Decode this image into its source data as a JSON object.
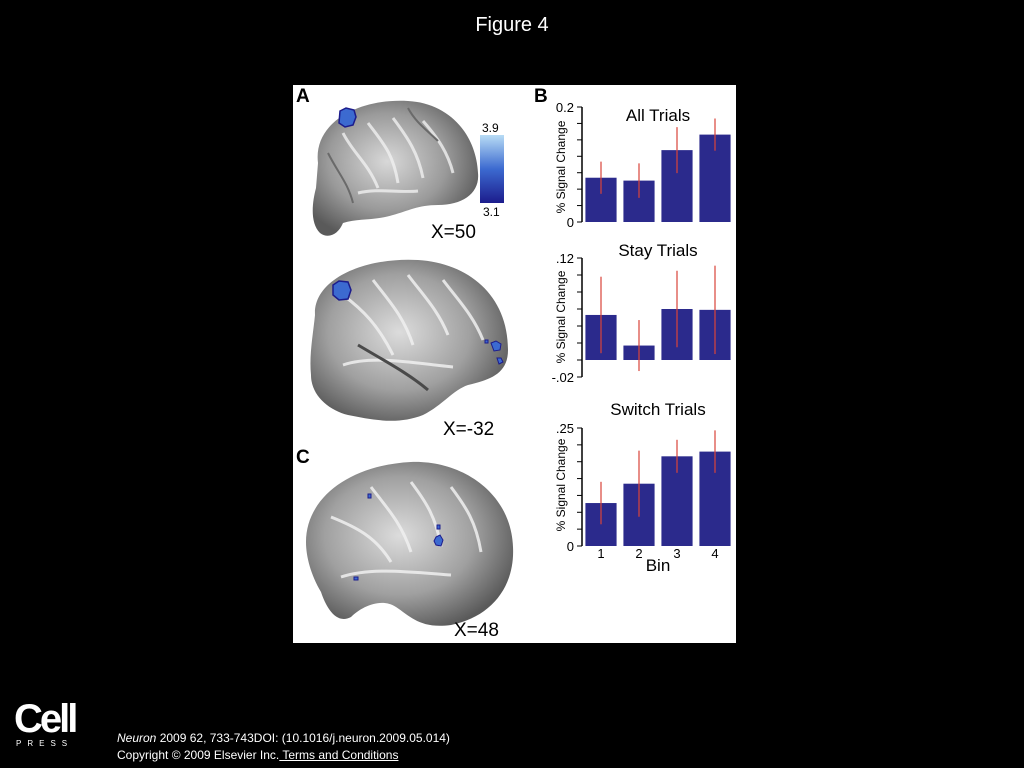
{
  "slide": {
    "title": "Figure 4"
  },
  "panels": {
    "a_label": "A",
    "b_label": "B",
    "c_label": "C",
    "coords": [
      "X=50",
      "X=-32",
      "X=48"
    ],
    "colorbar": {
      "max": "3.9",
      "min": "3.1"
    }
  },
  "chart_data": [
    {
      "type": "bar",
      "title": "All Trials",
      "ylabel": "% Signal Change",
      "xlabel": "",
      "categories": [
        "1",
        "2",
        "3",
        "4"
      ],
      "values": [
        0.077,
        0.072,
        0.125,
        0.152
      ],
      "errors": [
        0.028,
        0.03,
        0.04,
        0.028
      ],
      "ylim": [
        0,
        0.2
      ],
      "ytick_labels": [
        "0",
        "0.2"
      ],
      "color": "#2b2a8c",
      "error_color": "#d9443a"
    },
    {
      "type": "bar",
      "title": "Stay Trials",
      "ylabel": "% Signal Change",
      "xlabel": "",
      "categories": [
        "1",
        "2",
        "3",
        "4"
      ],
      "values": [
        0.053,
        0.017,
        0.06,
        0.059
      ],
      "errors": [
        0.045,
        0.03,
        0.045,
        0.052
      ],
      "ylim": [
        -0.02,
        0.12
      ],
      "ytick_labels": [
        "-.02",
        ".12"
      ],
      "color": "#2b2a8c",
      "error_color": "#d9443a"
    },
    {
      "type": "bar",
      "title": "Switch Trials",
      "ylabel": "% Signal Change",
      "xlabel": "Bin",
      "categories": [
        "1",
        "2",
        "3",
        "4"
      ],
      "values": [
        0.091,
        0.132,
        0.19,
        0.2
      ],
      "errors": [
        0.045,
        0.07,
        0.035,
        0.045
      ],
      "ylim": [
        0,
        0.25
      ],
      "ytick_labels": [
        "0",
        ".25"
      ],
      "color": "#2b2a8c",
      "error_color": "#d9443a"
    }
  ],
  "footer": {
    "logo_word": "Cell",
    "logo_sub": "PRESS",
    "citation_journal": "Neuron",
    "citation_rest": " 2009 62, 733-743DOI: (10.1016/j.neuron.2009.05.014)",
    "copyright": "Copyright © 2009 Elsevier Inc.",
    "terms_link": " Terms and Conditions"
  }
}
